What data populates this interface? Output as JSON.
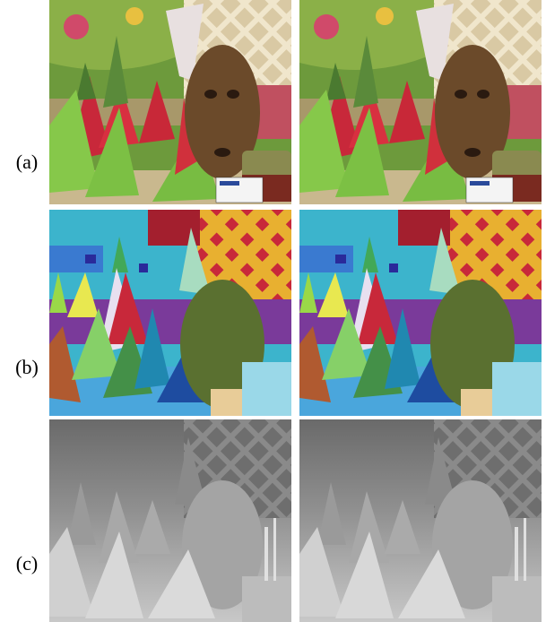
{
  "figure": {
    "rows": [
      {
        "label": "(a)"
      },
      {
        "label": "(b)"
      },
      {
        "label": "(c)"
      }
    ]
  }
}
